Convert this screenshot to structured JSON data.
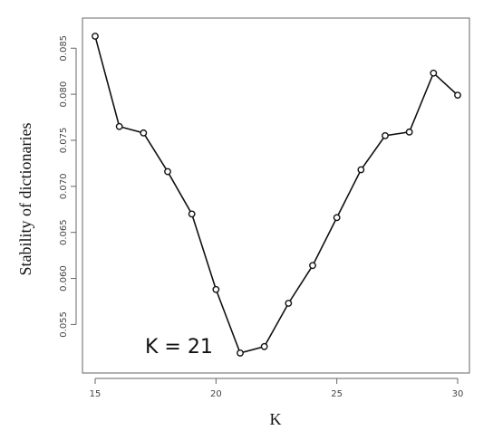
{
  "chart_data": {
    "type": "line",
    "title": "",
    "xlabel": "K",
    "ylabel": "Stability of dictionaries",
    "xlim": [
      15,
      30
    ],
    "ylim": [
      0.0515,
      0.0865
    ],
    "x_ticks": [
      15,
      20,
      25,
      30
    ],
    "y_ticks": [
      "0.055",
      "0.060",
      "0.065",
      "0.070",
      "0.075",
      "0.080",
      "0.085"
    ],
    "grid": false,
    "annotation": "K = 21",
    "colors": {
      "line": "#111111",
      "frame": "#666666"
    },
    "series": [
      {
        "x": [
          15,
          16,
          17,
          18,
          19,
          20,
          21,
          22,
          23,
          24,
          25,
          26,
          27,
          28,
          29,
          30
        ],
        "values": [
          0.0863,
          0.0765,
          0.0758,
          0.0716,
          0.067,
          0.0588,
          0.0519,
          0.0526,
          0.0573,
          0.0614,
          0.0666,
          0.0718,
          0.0755,
          0.0759,
          0.0823,
          0.0799
        ]
      }
    ]
  }
}
